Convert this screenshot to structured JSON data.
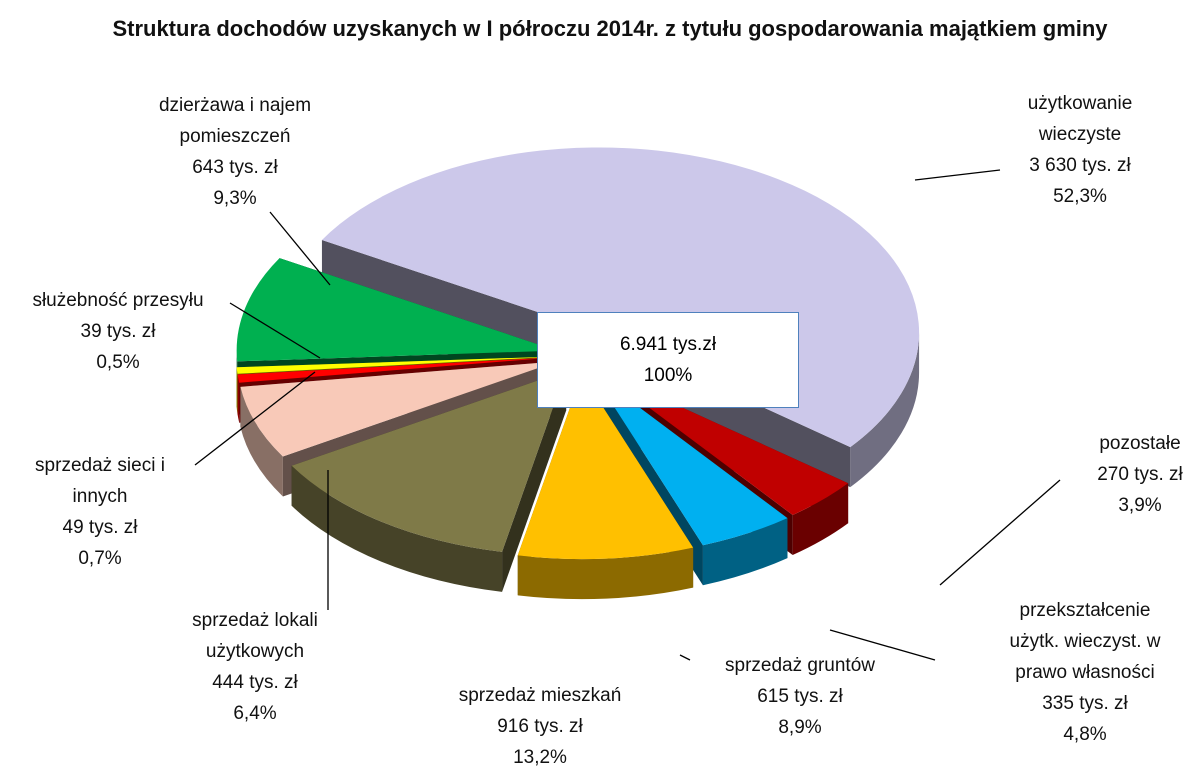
{
  "chart_data": {
    "type": "pie",
    "title": "Struktura dochodów uzyskanych w I półroczu 2014r. z tytułu gospodarowania majątkiem gminy",
    "categories": [
      "użytkowanie wieczyste",
      "pozostałe",
      "przekształcenie użytk. wieczyst. w prawo własności",
      "sprzedaż gruntów",
      "sprzedaż mieszkań",
      "sprzedaż lokali użytkowych",
      "sprzedaż sieci i innych",
      "służebność przesyłu",
      "dzierżawa i najem pomieszczeń"
    ],
    "values": [
      3630,
      270,
      335,
      615,
      916,
      444,
      49,
      39,
      643
    ],
    "value_labels": [
      "3 630 tys. zł",
      "270 tys. zł",
      "335 tys. zł",
      "615 tys. zł",
      "916 tys. zł",
      "444 tys. zł",
      "49 tys. zł",
      "39 tys. zł",
      "643 tys. zł"
    ],
    "percents": [
      52.3,
      3.9,
      4.8,
      8.9,
      13.2,
      6.4,
      0.7,
      0.5,
      9.3
    ],
    "percent_labels": [
      "52,3%",
      "3,9%",
      "4,8%",
      "8,9%",
      "13,2%",
      "6,4%",
      "0,7%",
      "0,5%",
      "9,3%"
    ],
    "colors": [
      "#ccc8ea",
      "#c00000",
      "#00b0f0",
      "#ffc000",
      "#7f7a48",
      "#f8c9b8",
      "#ff0000",
      "#ffff00",
      "#00b050"
    ],
    "total": 6941,
    "total_label": "6.941 tys.zł",
    "total_percent": 100,
    "total_percent_label": "100%"
  }
}
